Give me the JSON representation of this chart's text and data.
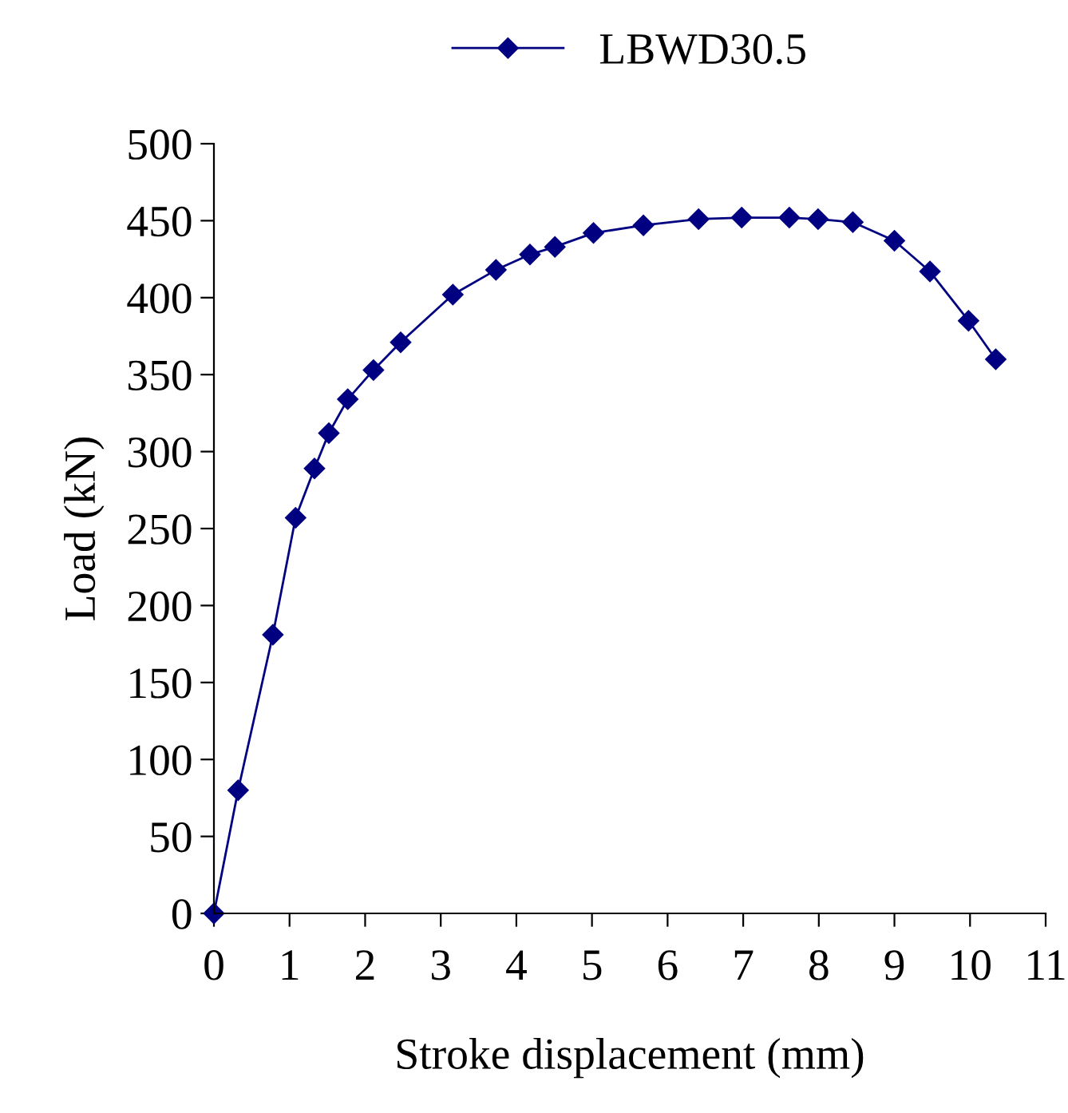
{
  "chart_data": {
    "type": "line",
    "xlabel": "Stroke displacement (mm)",
    "ylabel": "Load (kN)",
    "series": [
      {
        "name": "LBWD30.5",
        "color": "#000080",
        "x": [
          0,
          0.32,
          0.78,
          1.08,
          1.33,
          1.52,
          1.77,
          2.11,
          2.47,
          3.16,
          3.73,
          4.18,
          4.51,
          5.02,
          5.68,
          6.41,
          6.98,
          7.61,
          7.99,
          8.45,
          9.0,
          9.47,
          9.98,
          10.34
        ],
        "values": [
          0,
          80,
          181,
          257,
          289,
          312,
          334,
          353,
          371,
          402,
          418,
          428,
          433,
          442,
          447,
          451,
          452,
          452,
          451,
          449,
          437,
          417,
          385,
          360
        ]
      }
    ],
    "xlim": [
      0,
      11
    ],
    "xticks": [
      0,
      1,
      2,
      3,
      4,
      5,
      6,
      7,
      8,
      9,
      10,
      11
    ],
    "ylim": [
      0,
      500
    ],
    "yticks": [
      0,
      50,
      100,
      150,
      200,
      250,
      300,
      350,
      400,
      450,
      500
    ],
    "marker": "diamond",
    "line_style": "solid",
    "grid": false,
    "legend": "top"
  }
}
